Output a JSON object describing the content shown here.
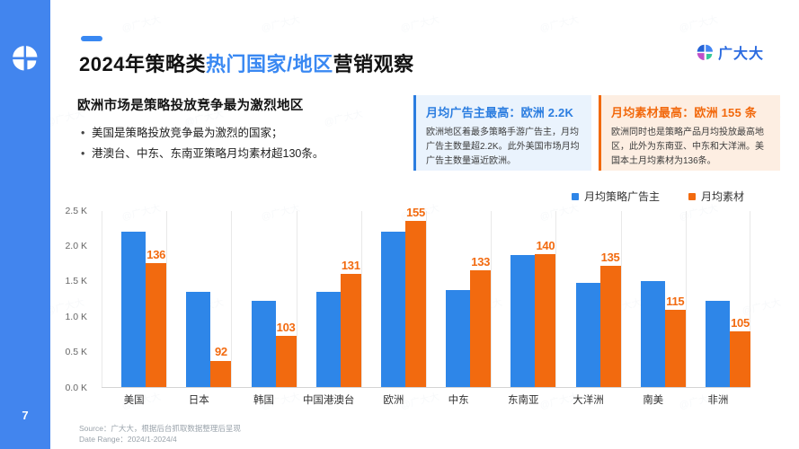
{
  "page": {
    "watermark": "@广大大"
  },
  "sidebar": {
    "color": "#4285ee",
    "page_number": "7"
  },
  "header": {
    "title_prefix": "2024年策略类",
    "title_highlight": "热门国家/地区",
    "title_suffix": "营销观察",
    "highlight_color": "#3988f2"
  },
  "brand": {
    "name": "广大大",
    "color": "#2b6be0"
  },
  "intro": {
    "heading": "欧洲市场是策略投放竞争最为激烈地区",
    "bullets": [
      "美国是策略投放竞争最为激烈的国家；",
      "港澳台、中东、东南亚策略月均素材超130条。"
    ]
  },
  "callouts": [
    {
      "title": "月均广告主最高：欧洲 2.2K",
      "body": "欧洲地区着最多策略手游广告主，月均广告主数量超2.2K。此外美国市场月均广告主数量逼近欧洲。",
      "accent": "#2b7de0",
      "bg": "#eaf3fd"
    },
    {
      "title": "月均素材最高：欧洲 155 条",
      "body": "欧洲同时也是策略产品月均投放最高地区，此外为东南亚、中东和大洋洲。美国本土月均素材为136条。",
      "accent": "#f2690d",
      "bg": "#fdeee2"
    }
  ],
  "legend": [
    {
      "label": "月均策略广告主",
      "color": "#2e86e8"
    },
    {
      "label": "月均素材",
      "color": "#f26a0f"
    }
  ],
  "chart_data": {
    "type": "bar",
    "title": "",
    "categories": [
      "美国",
      "日本",
      "韩国",
      "中国港澳台",
      "欧洲",
      "中东",
      "东南亚",
      "大洋洲",
      "南美",
      "非洲"
    ],
    "series": [
      {
        "name": "月均策略广告主",
        "unit": "K",
        "color": "#2e86e8",
        "axis": "left",
        "values": [
          2.2,
          1.35,
          1.22,
          1.35,
          2.2,
          1.37,
          1.87,
          1.47,
          1.5,
          1.22
        ]
      },
      {
        "name": "月均素材",
        "unit": "条",
        "color": "#f26a0f",
        "axis": "right-hidden",
        "values": [
          136,
          92,
          103,
          131,
          155,
          133,
          140,
          135,
          115,
          105
        ],
        "labels_shown": true
      }
    ],
    "left_axis": {
      "ticks": [
        "0.0 K",
        "0.5 K",
        "1.0 K",
        "1.5 K",
        "2.0 K",
        "2.5 K"
      ],
      "range": [
        0,
        2.5
      ]
    },
    "right_axis_hidden_range": [
      80,
      160
    ],
    "grid": "vertical-separators",
    "legend_position": "top-right"
  },
  "footer": {
    "source": "Source：广大大，根据后台抓取数据整理后呈现",
    "date_range": "Date Range：2024/1-2024/4"
  }
}
